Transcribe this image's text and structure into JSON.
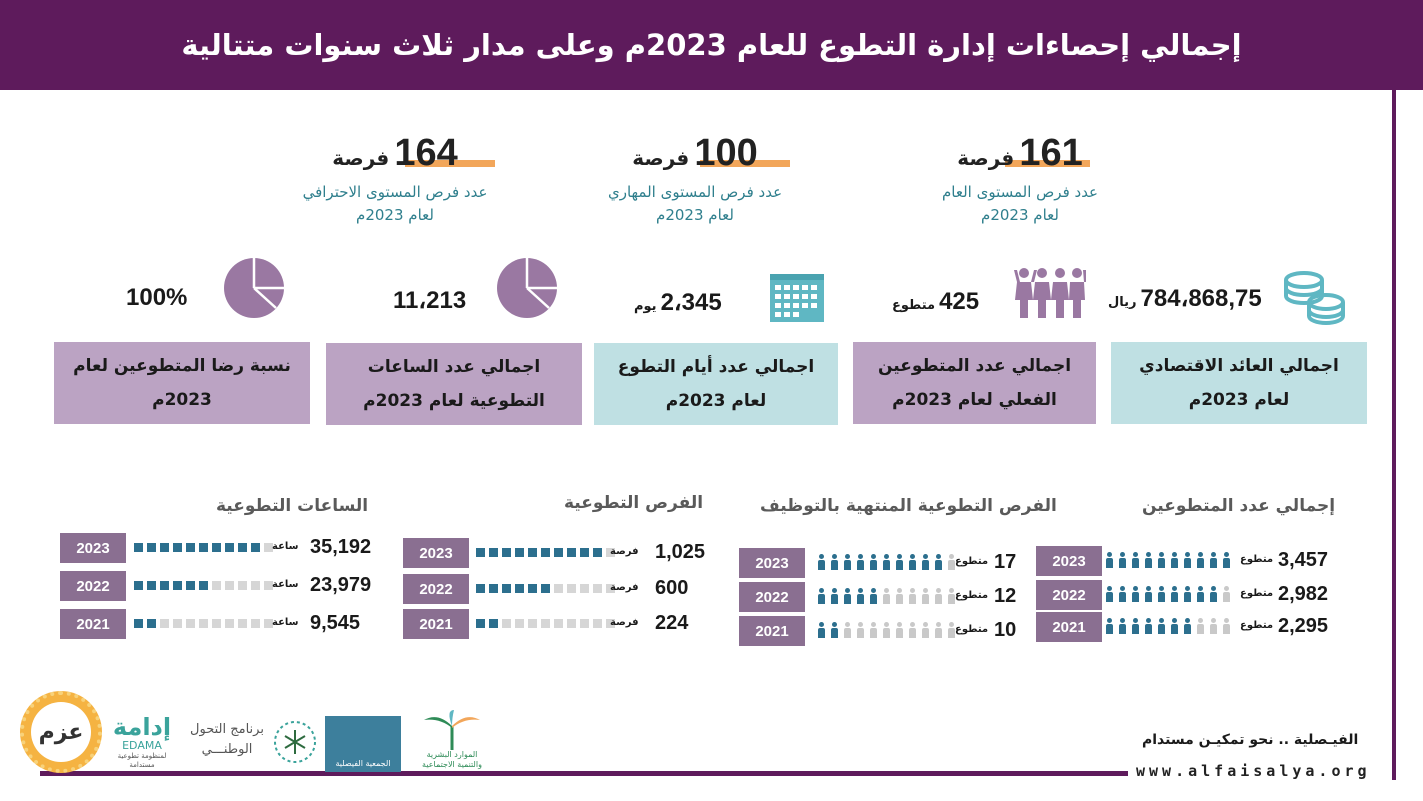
{
  "header": {
    "title": "إجمالي إحصاءات إدارة التطوع للعام 2023م وعلى مدار ثلاث سنوات متتالية"
  },
  "opportunities": [
    {
      "number": "161",
      "unit": "فرصة",
      "desc1": "عدد فرص المستوى العام",
      "desc2": "لعام 2023م"
    },
    {
      "number": "100",
      "unit": "فرصة",
      "desc1": "عدد فرص المستوى المهاري",
      "desc2": "لعام 2023م"
    },
    {
      "number": "164",
      "unit": "فرصة",
      "desc1": "عدد فرص المستوى الاحترافي",
      "desc2": "لعام 2023م"
    }
  ],
  "stats": [
    {
      "value": "784،868,75",
      "unit": "ريال",
      "label": "اجمالي العائد الاقتصادي لعام 2023م",
      "icon": "coins-icon"
    },
    {
      "value": "425",
      "unit": "متطوع",
      "label": "اجمالي عدد المتطوعين الفعلي لعام 2023م",
      "icon": "volunteers-icon"
    },
    {
      "value": "2،345",
      "unit": "يوم",
      "label": "اجمالي عدد أيام التطوع لعام 2023م",
      "icon": "calendar-icon"
    },
    {
      "value": "11،213",
      "unit": "",
      "label": "اجمالي عدد الساعات التطوعية لعام 2023م",
      "icon": "pie-chart-icon"
    },
    {
      "value": "100%",
      "unit": "",
      "label": "نسبة رضا المتطوعين لعام 2023م",
      "icon": "pie-chart-icon"
    }
  ],
  "sections": {
    "volunteers": {
      "title": "إجمالي عدد المتطوعين",
      "unit": "متطوع",
      "rows": [
        {
          "year": "2023",
          "value": "3,457",
          "filled": 10,
          "total": 10
        },
        {
          "year": "2022",
          "value": "2,982",
          "filled": 9,
          "total": 10
        },
        {
          "year": "2021",
          "value": "2,295",
          "filled": 7,
          "total": 10
        }
      ]
    },
    "employment": {
      "title": "الفرص التطوعية المنتهية بالتوظيف",
      "unit": "متطوع",
      "rows": [
        {
          "year": "2023",
          "value": "17",
          "filled": 10,
          "total": 11
        },
        {
          "year": "2022",
          "value": "12",
          "filled": 5,
          "total": 11
        },
        {
          "year": "2021",
          "value": "10",
          "filled": 2,
          "total": 11
        }
      ]
    },
    "opportunities": {
      "title": "الفرص التطوعية",
      "unit": "فرصة",
      "rows": [
        {
          "year": "2023",
          "value": "1,025",
          "filled": 10,
          "total": 11
        },
        {
          "year": "2022",
          "value": "600",
          "filled": 6,
          "total": 11
        },
        {
          "year": "2021",
          "value": "224",
          "filled": 2,
          "total": 11
        }
      ]
    },
    "hours": {
      "title": "الساعات التطوعية",
      "unit": "ساعة",
      "rows": [
        {
          "year": "2023",
          "value": "35,192",
          "filled": 10,
          "total": 11
        },
        {
          "year": "2022",
          "value": "23,979",
          "filled": 6,
          "total": 11
        },
        {
          "year": "2021",
          "value": "9,545",
          "filled": 2,
          "total": 11
        }
      ]
    }
  },
  "footer": {
    "tagline": "الفيـصلية .. نحو تمكيـن مستدام",
    "url": "www.alfaisalya.org",
    "logos": {
      "hr": "الموارد البشرية والتنمية الاجتماعية",
      "badir": "الجمعية الفيصلية",
      "vision_program_1": "برنامج التحول",
      "vision_program_2": "الوطنـــي",
      "edama_ar": "إدامة",
      "edama_en": "EDAMA",
      "edama_sub": "لمنظومة تطوعية مستدامة",
      "azm": "عزم"
    }
  },
  "colors": {
    "primary": "#5e1b5c",
    "teal": "#bfe0e3",
    "lavender": "#bba3c3",
    "accent": "#f2a65a",
    "bar": "#2c6f8e"
  }
}
